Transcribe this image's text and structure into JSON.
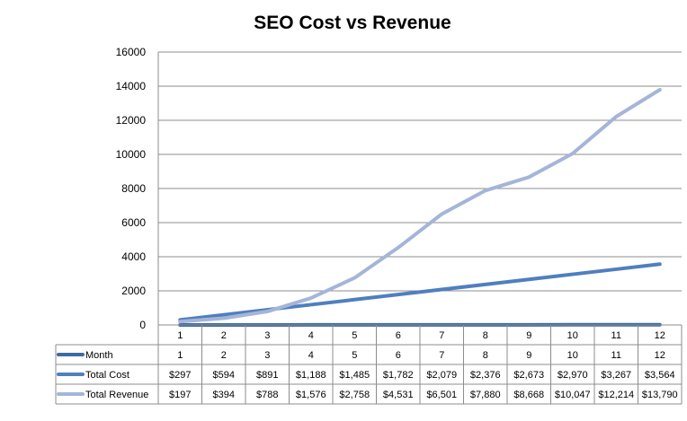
{
  "chart_data": {
    "type": "line",
    "title": "SEO Cost vs Revenue",
    "categories": [
      "1",
      "2",
      "3",
      "4",
      "5",
      "6",
      "7",
      "8",
      "9",
      "10",
      "11",
      "12"
    ],
    "ylim": [
      0,
      16000
    ],
    "yticks": [
      "0",
      "2000",
      "4000",
      "6000",
      "8000",
      "10000",
      "12000",
      "14000",
      "16000"
    ],
    "grid": true,
    "legend": "data-table",
    "series": [
      {
        "name": "Month",
        "color": "#3f6aa0",
        "values": [
          1,
          2,
          3,
          4,
          5,
          6,
          7,
          8,
          9,
          10,
          11,
          12
        ],
        "table": [
          "1",
          "2",
          "3",
          "4",
          "5",
          "6",
          "7",
          "8",
          "9",
          "10",
          "11",
          "12"
        ]
      },
      {
        "name": "Total Cost",
        "color": "#4f7fbf",
        "values": [
          297,
          594,
          891,
          1188,
          1485,
          1782,
          2079,
          2376,
          2673,
          2970,
          3267,
          3564
        ],
        "table": [
          "$297",
          "$594",
          "$891",
          "$1,188",
          "$1,485",
          "$1,782",
          "$2,079",
          "$2,376",
          "$2,673",
          "$2,970",
          "$3,267",
          "$3,564"
        ]
      },
      {
        "name": "Total Revenue",
        "color": "#a4b5d8",
        "values": [
          197,
          394,
          788,
          1576,
          2758,
          4531,
          6501,
          7880,
          8668,
          10047,
          12214,
          13790
        ],
        "table": [
          "$197",
          "$394",
          "$788",
          "$1,576",
          "$2,758",
          "$4,531",
          "$6,501",
          "$7,880",
          "$8,668",
          "$10,047",
          "$12,214",
          "$13,790"
        ]
      }
    ]
  }
}
